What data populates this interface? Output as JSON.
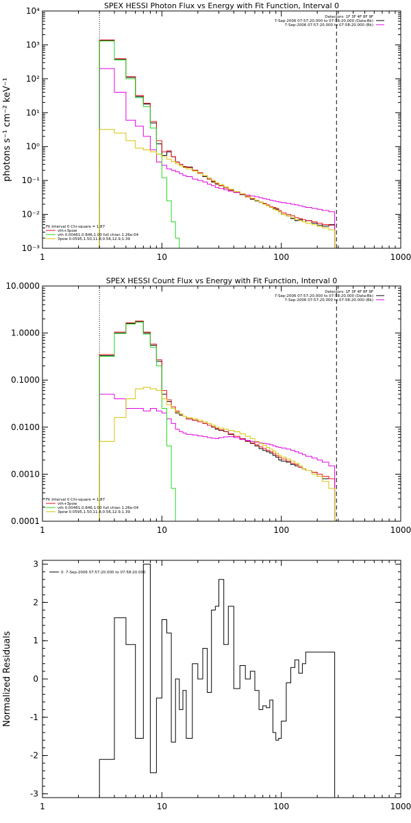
{
  "chart_data": [
    {
      "type": "line",
      "title": "SPEX HESSI Photon Flux vs Energy with Fit Function, Interval 0",
      "ylabel": "photons s⁻¹ cm⁻² keV⁻¹",
      "xscale": "log",
      "yscale": "log",
      "xlim": [
        1,
        1000
      ],
      "ylim": [
        0.001,
        10000
      ],
      "xticks": [
        "1",
        "10",
        "100",
        "1000"
      ],
      "yticks": [
        "10⁻³",
        "10⁻²",
        "10⁻¹",
        "10⁰",
        "10¹",
        "10²",
        "10³",
        "10⁴"
      ],
      "info": [
        "Detectors: 1F 3F 4F 8F 9F",
        "7-Sep-2006 07:57:20.000 to 07:58:20.000 (Data-Bk)",
        "7-Sep-2006 07:57:20.000 to 07:58:20.000 (Bk)"
      ],
      "fit_text": [
        "Fit Interval 0   Chi-square = 1.87",
        "vth+3pow",
        "vth 0.00461,0.846,1.00  full chian 1.26e-04",
        "3pow 0.0595,1.50,11.8,0.56,12.9,1.39"
      ],
      "vlines": [
        3,
        290
      ],
      "edges": [
        3,
        4,
        5,
        6,
        7,
        8,
        9,
        10,
        11,
        12,
        13,
        14,
        15,
        16,
        18,
        20,
        22,
        24,
        26,
        28,
        30,
        33,
        36,
        40,
        45,
        50,
        55,
        60,
        65,
        70,
        75,
        80,
        85,
        90,
        95,
        100,
        110,
        120,
        130,
        140,
        150,
        160,
        180,
        200,
        220,
        250,
        280
      ],
      "series": [
        {
          "color": "#000000",
          "values": [
            1350,
            380,
            110,
            30,
            18,
            5,
            1.2,
            0.55,
            0.7,
            0.5,
            0.35,
            0.3,
            0.25,
            0.25,
            0.2,
            0.16,
            0.13,
            0.11,
            0.09,
            0.078,
            0.07,
            0.06,
            0.052,
            0.045,
            0.038,
            0.033,
            0.028,
            0.025,
            0.023,
            0.021,
            0.018,
            0.016,
            0.015,
            0.014,
            0.012,
            0.01,
            0.009,
            0.0075,
            0.0065,
            0.007,
            0.006,
            0.0065,
            0.0055,
            0.0048,
            0.0045,
            0.005
          ]
        },
        {
          "color": "#e8121c",
          "values": [
            1400,
            390,
            115,
            32,
            19,
            5.5,
            1.5,
            0.7,
            0.75,
            0.5,
            0.35,
            0.3,
            0.26,
            0.24,
            0.2,
            0.17,
            0.14,
            0.11,
            0.095,
            0.08,
            0.07,
            0.06,
            0.052,
            0.045,
            0.039,
            0.033,
            0.029,
            0.026,
            0.023,
            0.021,
            0.019,
            0.017,
            0.016,
            0.015,
            0.013,
            0.011,
            0.01,
            0.009,
            0.008,
            0.0075,
            0.007,
            0.0065,
            0.006,
            0.0055,
            0.005,
            0.0048
          ]
        },
        {
          "color": "#e000e0",
          "values": [
            200,
            40,
            6,
            4,
            2,
            0.8,
            0.35,
            0.28,
            0.22,
            0.2,
            0.18,
            0.16,
            0.14,
            0.13,
            0.11,
            0.1,
            0.09,
            0.078,
            0.07,
            0.062,
            0.058,
            0.053,
            0.048,
            0.044,
            0.04,
            0.037,
            0.035,
            0.033,
            0.031,
            0.029,
            0.028,
            0.026,
            0.025,
            0.024,
            0.023,
            0.022,
            0.021,
            0.02,
            0.019,
            0.018,
            0.017,
            0.016,
            0.015,
            0.014,
            0.013,
            0.012
          ]
        },
        {
          "color": "#22d622",
          "values": [
            1300,
            360,
            100,
            28,
            15,
            3.5,
            0.6,
            0.12,
            0.025,
            0.006,
            0.002,
            0.0008
          ]
        },
        {
          "color": "#d6c200",
          "values": [
            3.2,
            2.5,
            1.5,
            0.9,
            0.8,
            0.7,
            0.6,
            0.5,
            0.42,
            0.36,
            0.31,
            0.27,
            0.24,
            0.22,
            0.19,
            0.16,
            0.14,
            0.12,
            0.1,
            0.085,
            0.075,
            0.065,
            0.055,
            0.047,
            0.04,
            0.035,
            0.03,
            0.026,
            0.023,
            0.02,
            0.018,
            0.016,
            0.014,
            0.013,
            0.012,
            0.01,
            0.009,
            0.008,
            0.007,
            0.0065,
            0.006,
            0.0055,
            0.005,
            0.0044,
            0.004,
            0.0035
          ]
        }
      ]
    },
    {
      "type": "line",
      "title": "SPEX HESSI Count Flux vs Energy with Fit Function, Interval 0",
      "ylabel": "",
      "xscale": "log",
      "yscale": "log",
      "xlim": [
        1,
        1000
      ],
      "ylim": [
        0.0001,
        10
      ],
      "xticks": [
        "1",
        "10",
        "100",
        "1000"
      ],
      "yticks": [
        "0.0001",
        "0.0010",
        "0.0100",
        "0.1000",
        "1.0000",
        "10.0000"
      ],
      "info": [
        "Detectors: 1F 3F 4F 8F 9F",
        "7-Sep-2006 07:57:20.000 to 07:58:20.000 (Data-Bk)",
        "7-Sep-2006 07:57:20.000 to 07:58:20.000 (Bk)"
      ],
      "fit_text": [
        "Fit Interval 0   Chi-square = 1.87",
        "vth+3pow",
        "vth 0.00461,0.846,1.00  full chian 1.26e-04",
        "3pow 0.0595,1.50,11.8,0.56,12.9,1.39"
      ],
      "vlines": [
        3,
        290
      ],
      "edges": [
        3,
        4,
        5,
        6,
        7,
        8,
        9,
        10,
        11,
        12,
        13,
        14,
        15,
        16,
        18,
        20,
        22,
        24,
        26,
        28,
        30,
        33,
        36,
        40,
        45,
        50,
        55,
        60,
        65,
        70,
        75,
        80,
        85,
        90,
        95,
        100,
        110,
        120,
        130,
        140,
        150,
        160,
        180,
        200,
        220,
        250,
        280
      ],
      "series": [
        {
          "color": "#000000",
          "values": [
            0.33,
            1.0,
            1.6,
            1.75,
            1.0,
            0.55,
            0.25,
            0.05,
            0.035,
            0.025,
            0.02,
            0.018,
            0.017,
            0.015,
            0.014,
            0.013,
            0.012,
            0.011,
            0.01,
            0.009,
            0.0085,
            0.008,
            0.007,
            0.006,
            0.0055,
            0.005,
            0.0045,
            0.004,
            0.0035,
            0.0032,
            0.003,
            0.0028,
            0.0025,
            0.0023,
            0.002,
            0.0019,
            0.0018,
            0.0016,
            0.0015,
            0.0014,
            0.0013,
            0.0012,
            0.0011,
            0.0009,
            0.0008,
            0.0008
          ]
        },
        {
          "color": "#e8121c",
          "values": [
            0.35,
            1.05,
            1.65,
            1.8,
            1.05,
            0.58,
            0.27,
            0.06,
            0.038,
            0.027,
            0.022,
            0.019,
            0.017,
            0.015,
            0.014,
            0.013,
            0.012,
            0.011,
            0.0102,
            0.0094,
            0.0087,
            0.008,
            0.0072,
            0.0064,
            0.0057,
            0.0051,
            0.0046,
            0.0042,
            0.0038,
            0.0035,
            0.0032,
            0.003,
            0.0027,
            0.0025,
            0.0023,
            0.0021,
            0.0019,
            0.0017,
            0.0016,
            0.0014,
            0.0013,
            0.0012,
            0.0011,
            0.001,
            0.0009,
            0.0008
          ]
        },
        {
          "color": "#e000e0",
          "values": [
            0.05,
            0.04,
            0.025,
            0.025,
            0.022,
            0.025,
            0.022,
            0.02,
            0.015,
            0.012,
            0.009,
            0.008,
            0.0075,
            0.007,
            0.0068,
            0.0065,
            0.0063,
            0.006,
            0.0058,
            0.0057,
            0.006,
            0.0062,
            0.0063,
            0.006,
            0.0055,
            0.0052,
            0.005,
            0.0048,
            0.0046,
            0.0045,
            0.0044,
            0.0042,
            0.004,
            0.0038,
            0.0037,
            0.0036,
            0.0034,
            0.0032,
            0.003,
            0.0028,
            0.0026,
            0.0024,
            0.0022,
            0.002,
            0.0018,
            0.0015
          ]
        },
        {
          "color": "#22d622",
          "values": [
            0.32,
            0.98,
            1.55,
            1.7,
            0.95,
            0.5,
            0.2,
            0.025,
            0.004,
            0.0005,
            0.0001,
            5e-05
          ]
        },
        {
          "color": "#d6c200",
          "values": [
            0.005,
            0.016,
            0.04,
            0.065,
            0.07,
            0.065,
            0.06,
            0.04,
            0.03,
            0.025,
            0.021,
            0.019,
            0.017,
            0.016,
            0.015,
            0.014,
            0.013,
            0.012,
            0.011,
            0.01,
            0.0095,
            0.009,
            0.0085,
            0.008,
            0.0072,
            0.0064,
            0.0057,
            0.005,
            0.0045,
            0.0041,
            0.0037,
            0.0034,
            0.0031,
            0.0028,
            0.0025,
            0.0023,
            0.0021,
            0.0019,
            0.0017,
            0.0015,
            0.0013,
            0.0012,
            0.001,
            0.0009,
            0.0007,
            0.0005
          ]
        }
      ]
    },
    {
      "type": "line",
      "title": "",
      "ylabel": "Normalized Residuals",
      "xscale": "log",
      "yscale": "linear",
      "xlim": [
        1,
        1000
      ],
      "ylim": [
        -3.1,
        3.1
      ],
      "xticks": [
        "1",
        "10",
        "100",
        "1000"
      ],
      "yticks": [
        "-3",
        "-2",
        "-1",
        "0",
        "1",
        "2",
        "3"
      ],
      "legend": "0.  7-Sep-2006 07:57:20.000 to 07:58:20.000",
      "edges": [
        3,
        4,
        5,
        6,
        7,
        8,
        9,
        10,
        11,
        12,
        13,
        14,
        15,
        16,
        18,
        20,
        22,
        24,
        26,
        28,
        30,
        33,
        36,
        40,
        45,
        50,
        55,
        60,
        65,
        70,
        75,
        80,
        85,
        90,
        95,
        100,
        110,
        120,
        130,
        140,
        150,
        160,
        180,
        200,
        220,
        250,
        280
      ],
      "series": [
        {
          "color": "#000000",
          "values": [
            -2.1,
            1.6,
            0.9,
            -1.55,
            3.0,
            -2.45,
            -0.5,
            1.55,
            1.2,
            -1.65,
            0,
            -0.8,
            -0.3,
            -1.55,
            0.4,
            0,
            0.8,
            -0.35,
            1.8,
            1.9,
            2.6,
            0.9,
            1.9,
            -0.25,
            0.35,
            0,
            0.2,
            -0.3,
            -0.8,
            -0.7,
            -0.75,
            -0.55,
            -1.4,
            -1.6,
            -1.55,
            -1.1,
            -0.1,
            0.3,
            0.5,
            0.15,
            0.4,
            0.7,
            0.7,
            0.7,
            0.7,
            0.7
          ]
        }
      ]
    }
  ]
}
